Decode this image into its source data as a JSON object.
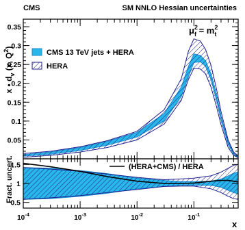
{
  "header": {
    "left": "CMS",
    "right": "SM NNLO Hessian uncertainties"
  },
  "colors": {
    "band_fill": "#29b6e8",
    "band_edge": "#1a8ccc",
    "hatch": "#1f1f8f",
    "hatch_fill": "#d9d9ee"
  },
  "chart_data": [
    {
      "type": "area",
      "title": "",
      "ylabel_parts": {
        "a": "x • d",
        "sub": "v",
        "b": " (x, Q",
        "sup": "2",
        "c": ")"
      },
      "scale_parts": {
        "mu": "μ",
        "mu_sup": "2",
        "mu_sub": "f",
        "eq": " = m",
        "m_sup": "2",
        "m_sub": "t"
      },
      "xscale": "log",
      "xlim": [
        0.0001,
        0.6
      ],
      "ylim": [
        0,
        0.37
      ],
      "yticks": [
        0.05,
        0.1,
        0.15,
        0.2,
        0.25,
        0.3,
        0.35
      ],
      "legend_position": "upper-left",
      "x": [
        0.0001,
        0.0003,
        0.001,
        0.003,
        0.01,
        0.03,
        0.06,
        0.08,
        0.1,
        0.13,
        0.16,
        0.2,
        0.25,
        0.3,
        0.4,
        0.5,
        0.6
      ],
      "series": [
        {
          "name": "CMS 13 TeV jets + HERA",
          "style": "solid-band",
          "lower": [
            0.007,
            0.012,
            0.022,
            0.036,
            0.058,
            0.1,
            0.165,
            0.218,
            0.255,
            0.257,
            0.245,
            0.21,
            0.155,
            0.103,
            0.038,
            0.012,
            0.004
          ],
          "upper": [
            0.011,
            0.018,
            0.03,
            0.046,
            0.07,
            0.12,
            0.19,
            0.245,
            0.278,
            0.274,
            0.26,
            0.225,
            0.17,
            0.113,
            0.045,
            0.015,
            0.006
          ]
        },
        {
          "name": "HERA",
          "style": "hatched-band",
          "lower": [
            0.004,
            0.009,
            0.018,
            0.03,
            0.05,
            0.092,
            0.155,
            0.21,
            0.24,
            0.238,
            0.225,
            0.19,
            0.138,
            0.09,
            0.03,
            0.009,
            0.003
          ],
          "upper": [
            0.014,
            0.02,
            0.032,
            0.048,
            0.073,
            0.13,
            0.212,
            0.285,
            0.318,
            0.312,
            0.29,
            0.248,
            0.185,
            0.125,
            0.05,
            0.018,
            0.008
          ]
        }
      ]
    },
    {
      "type": "area",
      "title": "",
      "ylabel": "Fract. uncert.",
      "xlabel": "x",
      "xscale": "log",
      "xlim": [
        0.0001,
        0.6
      ],
      "ylim": [
        0.35,
        1.65
      ],
      "yticks": [
        0.5,
        1,
        1.5
      ],
      "xticks": [
        0.0001,
        0.001,
        0.01,
        0.1
      ],
      "xtick_labels": [
        {
          "base": "10",
          "exp": "-4"
        },
        {
          "base": "10",
          "exp": "-3"
        },
        {
          "base": "10",
          "exp": "-2"
        },
        {
          "base": "10",
          "exp": "-1"
        }
      ],
      "legend_position": "top-right",
      "x": [
        0.0001,
        0.0003,
        0.001,
        0.003,
        0.01,
        0.03,
        0.06,
        0.1,
        0.2,
        0.3,
        0.4,
        0.5,
        0.6
      ],
      "series": [
        {
          "name": "",
          "style": "solid-band",
          "lower": [
            0.58,
            0.6,
            0.66,
            0.74,
            0.86,
            0.92,
            0.95,
            0.95,
            0.95,
            0.9,
            0.82,
            0.76,
            0.72
          ],
          "upper": [
            1.42,
            1.4,
            1.34,
            1.26,
            1.14,
            1.08,
            1.05,
            1.05,
            1.06,
            1.12,
            1.2,
            1.27,
            1.3
          ]
        },
        {
          "name": "",
          "style": "hatched-band",
          "lower": [
            0.58,
            0.62,
            0.68,
            0.76,
            0.84,
            0.92,
            0.93,
            0.93,
            0.86,
            0.76,
            0.66,
            0.6,
            0.58
          ],
          "upper": [
            1.42,
            1.38,
            1.32,
            1.25,
            1.16,
            1.1,
            1.12,
            1.14,
            1.2,
            1.3,
            1.4,
            1.48,
            1.5
          ]
        },
        {
          "name": "(HERA+CMS) / HERA",
          "style": "line",
          "values": [
            1.53,
            1.44,
            1.32,
            1.18,
            1.06,
            1.0,
            1.0,
            1.01,
            1.06,
            1.08,
            1.08,
            1.06,
            1.04
          ]
        }
      ]
    }
  ]
}
